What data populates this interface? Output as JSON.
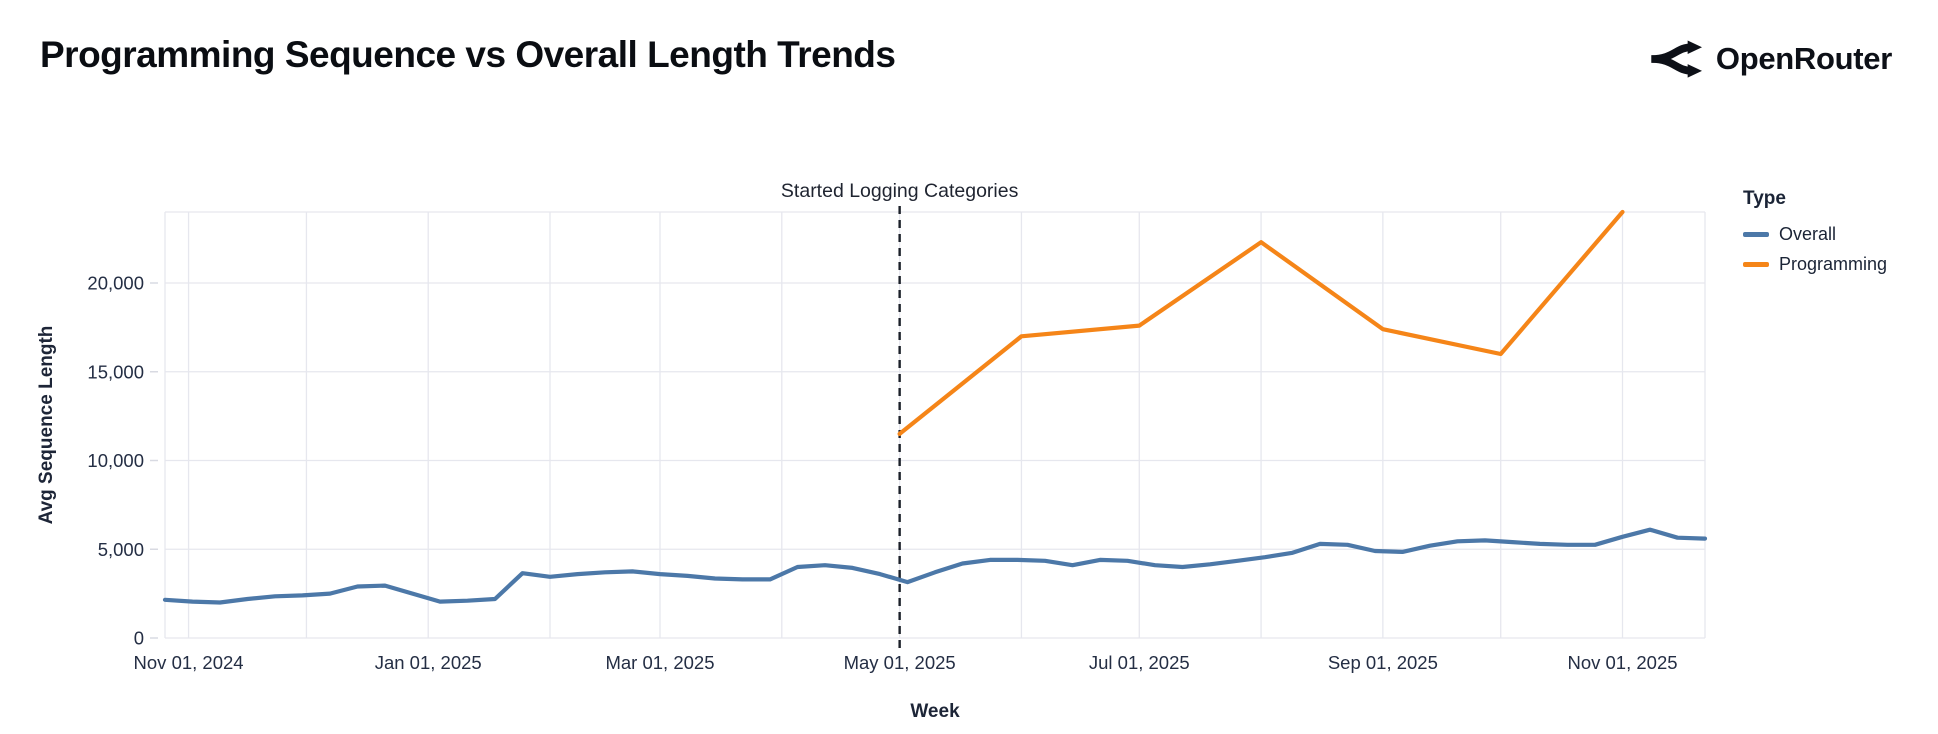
{
  "header": {
    "title": "Programming Sequence vs Overall Length Trends",
    "brand": "OpenRouter"
  },
  "legend": {
    "title": "Type"
  },
  "chart_data": {
    "type": "line",
    "title": "Programming Sequence vs Overall Length Trends",
    "xlabel": "Week",
    "ylabel": "Avg Sequence Length",
    "ylim": [
      0,
      24000
    ],
    "x_domain": [
      "2024-10-26",
      "2025-11-22"
    ],
    "grid": true,
    "legend_position": "right",
    "colors": {
      "grid": "#e6e7ee",
      "axis_text": "#242e44",
      "annotation_rule": "#1b2029"
    },
    "y_ticks": [
      {
        "value": 0,
        "label": "0"
      },
      {
        "value": 5000,
        "label": "5,000"
      },
      {
        "value": 10000,
        "label": "10,000"
      },
      {
        "value": 15000,
        "label": "15,000"
      },
      {
        "value": 20000,
        "label": "20,000"
      }
    ],
    "x_ticks": [
      {
        "date": "2024-11-01",
        "label": "Nov 01, 2024"
      },
      {
        "date": "2025-01-01",
        "label": "Jan 01, 2025"
      },
      {
        "date": "2025-03-01",
        "label": "Mar 01, 2025"
      },
      {
        "date": "2025-05-01",
        "label": "May 01, 2025"
      },
      {
        "date": "2025-07-01",
        "label": "Jul 01, 2025"
      },
      {
        "date": "2025-09-01",
        "label": "Sep 01, 2025"
      },
      {
        "date": "2025-11-01",
        "label": "Nov 01, 2025"
      }
    ],
    "annotation": {
      "text": "Started Logging Categories",
      "date": "2025-05-01"
    },
    "series": [
      {
        "name": "Overall",
        "color": "#4c78a8",
        "x": [
          "2024-10-26",
          "2024-11-02",
          "2024-11-09",
          "2024-11-16",
          "2024-11-23",
          "2024-11-30",
          "2024-12-07",
          "2024-12-14",
          "2024-12-21",
          "2024-12-28",
          "2025-01-04",
          "2025-01-11",
          "2025-01-18",
          "2025-01-25",
          "2025-02-01",
          "2025-02-08",
          "2025-02-15",
          "2025-02-22",
          "2025-03-01",
          "2025-03-08",
          "2025-03-15",
          "2025-03-22",
          "2025-03-29",
          "2025-04-05",
          "2025-04-12",
          "2025-04-19",
          "2025-04-26",
          "2025-05-03",
          "2025-05-10",
          "2025-05-17",
          "2025-05-24",
          "2025-05-31",
          "2025-06-07",
          "2025-06-14",
          "2025-06-21",
          "2025-06-28",
          "2025-07-05",
          "2025-07-12",
          "2025-07-19",
          "2025-07-26",
          "2025-08-02",
          "2025-08-09",
          "2025-08-16",
          "2025-08-23",
          "2025-08-30",
          "2025-09-06",
          "2025-09-13",
          "2025-09-20",
          "2025-09-27",
          "2025-10-04",
          "2025-10-11",
          "2025-10-18",
          "2025-10-25",
          "2025-11-01",
          "2025-11-08",
          "2025-11-15",
          "2025-11-22"
        ],
        "values": [
          2150,
          2050,
          2000,
          2200,
          2350,
          2400,
          2500,
          2900,
          2950,
          2500,
          2050,
          2100,
          2200,
          3650,
          3450,
          3600,
          3700,
          3750,
          3600,
          3500,
          3350,
          3300,
          3300,
          4000,
          4100,
          3950,
          3600,
          3150,
          3700,
          4200,
          4400,
          4400,
          4350,
          4100,
          4400,
          4350,
          4100,
          4000,
          4150,
          4350,
          4550,
          4800,
          5300,
          5250,
          4900,
          4850,
          5200,
          5450,
          5500,
          5400,
          5300,
          5250,
          5250,
          5700,
          6100,
          5650,
          5600
        ]
      },
      {
        "name": "Programming",
        "color": "#f58518",
        "x": [
          "2025-05-01",
          "2025-06-01",
          "2025-07-01",
          "2025-08-01",
          "2025-09-01",
          "2025-10-01",
          "2025-11-01"
        ],
        "values": [
          11500,
          17000,
          17600,
          22300,
          17400,
          16000,
          24000
        ]
      }
    ]
  }
}
